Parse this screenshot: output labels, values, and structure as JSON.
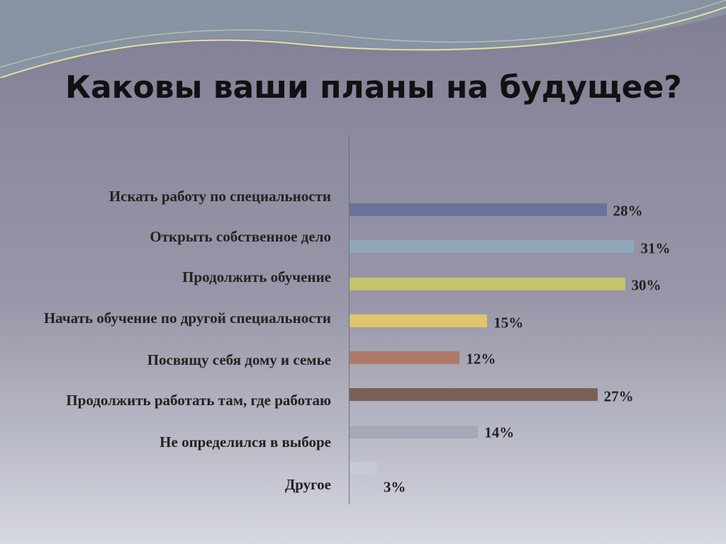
{
  "chart_data": {
    "type": "bar",
    "orientation": "horizontal",
    "title": "Каковы ваши планы на будущее?",
    "categories": [
      "Искать работу по специальности",
      "Открыть собственное дело",
      "Продолжить обучение",
      "Начать обучение по другой специальности",
      "Посвящу себя дому и семье",
      "Продолжить работать там, где работаю",
      "Не определился в выборе",
      "Другое"
    ],
    "values": [
      28,
      31,
      30,
      15,
      12,
      27,
      14,
      3
    ],
    "value_labels": [
      "28%",
      "31%",
      "30%",
      "15%",
      "12%",
      "27%",
      "14%",
      "3%"
    ],
    "colors": [
      "#6a7399",
      "#8fa7b9",
      "#c3c46c",
      "#e1c46c",
      "#ad7a69",
      "#7b6058",
      "#a7a8ba",
      "#c4cad6"
    ]
  }
}
